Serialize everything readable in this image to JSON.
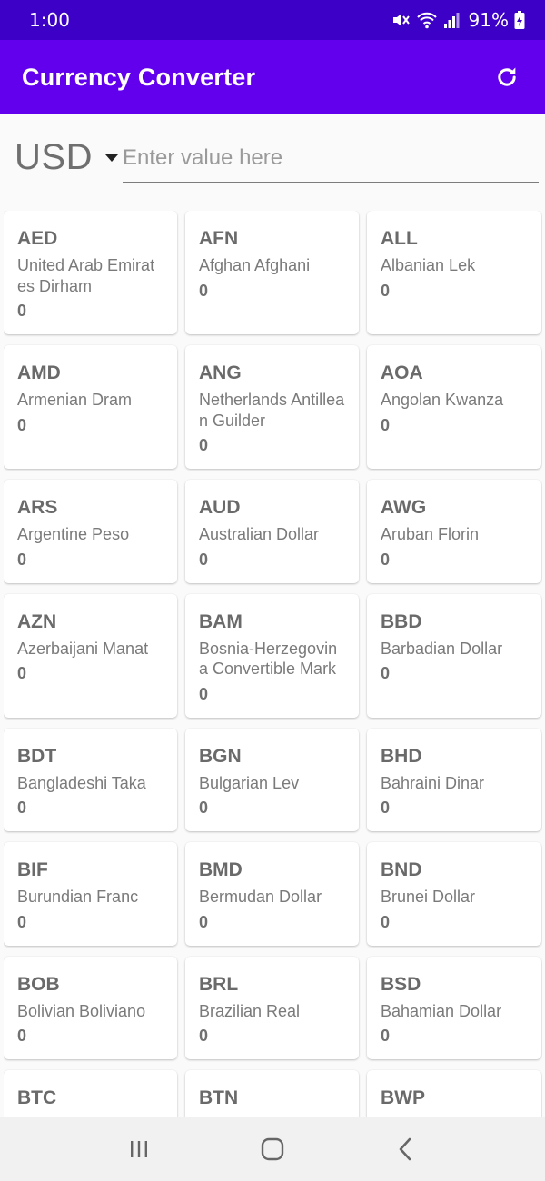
{
  "status_bar": {
    "time": "1:00",
    "battery": "91%",
    "icons": [
      "mute-icon",
      "wifi-icon",
      "signal-icon",
      "battery-charging-icon"
    ]
  },
  "app_bar": {
    "title": "Currency Converter",
    "refresh_icon": "refresh-icon"
  },
  "converter": {
    "selected_currency": "USD",
    "input_value": "",
    "input_placeholder": "Enter value here"
  },
  "currencies": [
    {
      "code": "AED",
      "name": "United Arab Emirates Dirham",
      "value": "0"
    },
    {
      "code": "AFN",
      "name": "Afghan Afghani",
      "value": "0"
    },
    {
      "code": "ALL",
      "name": "Albanian Lek",
      "value": "0"
    },
    {
      "code": "AMD",
      "name": "Armenian Dram",
      "value": "0"
    },
    {
      "code": "ANG",
      "name": "Netherlands Antillean Guilder",
      "value": "0"
    },
    {
      "code": "AOA",
      "name": "Angolan Kwanza",
      "value": "0"
    },
    {
      "code": "ARS",
      "name": "Argentine Peso",
      "value": "0"
    },
    {
      "code": "AUD",
      "name": "Australian Dollar",
      "value": "0"
    },
    {
      "code": "AWG",
      "name": "Aruban Florin",
      "value": "0"
    },
    {
      "code": "AZN",
      "name": "Azerbaijani Manat",
      "value": "0"
    },
    {
      "code": "BAM",
      "name": "Bosnia-Herzegovina Convertible Mark",
      "value": "0"
    },
    {
      "code": "BBD",
      "name": "Barbadian Dollar",
      "value": "0"
    },
    {
      "code": "BDT",
      "name": "Bangladeshi Taka",
      "value": "0"
    },
    {
      "code": "BGN",
      "name": "Bulgarian Lev",
      "value": "0"
    },
    {
      "code": "BHD",
      "name": "Bahraini Dinar",
      "value": "0"
    },
    {
      "code": "BIF",
      "name": "Burundian Franc",
      "value": "0"
    },
    {
      "code": "BMD",
      "name": "Bermudan Dollar",
      "value": "0"
    },
    {
      "code": "BND",
      "name": "Brunei Dollar",
      "value": "0"
    },
    {
      "code": "BOB",
      "name": "Bolivian Boliviano",
      "value": "0"
    },
    {
      "code": "BRL",
      "name": "Brazilian Real",
      "value": "0"
    },
    {
      "code": "BSD",
      "name": "Bahamian Dollar",
      "value": "0"
    },
    {
      "code": "BTC",
      "name": "",
      "value": ""
    },
    {
      "code": "BTN",
      "name": "",
      "value": ""
    },
    {
      "code": "BWP",
      "name": "",
      "value": ""
    }
  ],
  "nav_bar": {
    "icons": [
      "recent-apps-icon",
      "home-icon",
      "back-icon"
    ]
  },
  "colors": {
    "status_bar": "#3d00c6",
    "app_bar": "#6200ee",
    "background": "#fafafa",
    "card": "#ffffff"
  }
}
